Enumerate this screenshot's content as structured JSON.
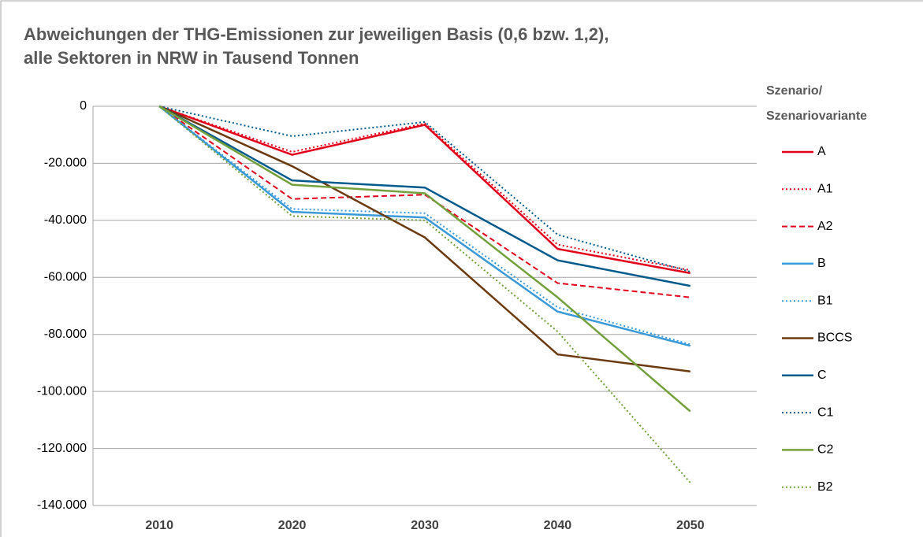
{
  "chart_data": {
    "type": "line",
    "title": [
      "Abweichungen der THG-Emissionen zur jeweiligen Basis (0,6 bzw. 1,2),",
      "alle Sektoren in NRW in Tausend Tonnen"
    ],
    "legend_title": [
      "Szenario/",
      "Szenariovariante"
    ],
    "categories": [
      "2010",
      "2020",
      "2030",
      "2040",
      "2050"
    ],
    "ylim": [
      -140000,
      0
    ],
    "yticks": [
      0,
      {
        "value": -20000,
        "label": "-20.000"
      },
      {
        "value": -40000,
        "label": "-40.000"
      },
      {
        "value": -60000,
        "label": "-60.000"
      },
      {
        "value": -80000,
        "label": "-80.000"
      },
      {
        "value": -100000,
        "label": "-100.000"
      },
      {
        "value": -120000,
        "label": "-120.000"
      },
      {
        "value": -140000,
        "label": "-140.000"
      }
    ],
    "grid": true,
    "legend": "right",
    "series": [
      {
        "name": "A",
        "color": "#e2001a",
        "dash": "solid",
        "values": [
          0,
          -17000,
          -6500,
          -50000,
          -58500
        ]
      },
      {
        "name": "A1",
        "color": "#e2001a",
        "dash": "dotted",
        "values": [
          0,
          -16000,
          -6000,
          -48500,
          -57500
        ]
      },
      {
        "name": "A2",
        "color": "#e2001a",
        "dash": "dashed",
        "values": [
          0,
          -32500,
          -31000,
          -62000,
          -67000
        ]
      },
      {
        "name": "B",
        "color": "#3a9ad9",
        "dash": "solid",
        "values": [
          0,
          -37000,
          -39000,
          -72000,
          -84000
        ]
      },
      {
        "name": "B1",
        "color": "#3a9ad9",
        "dash": "dotted",
        "values": [
          0,
          -36000,
          -37500,
          -70500,
          -83500
        ]
      },
      {
        "name": "BCCS",
        "color": "#6b3a10",
        "dash": "solid",
        "values": [
          0,
          -21000,
          -46000,
          -87000,
          -93000
        ]
      },
      {
        "name": "C",
        "color": "#005a8c",
        "dash": "solid",
        "values": [
          0,
          -26000,
          -28500,
          -54000,
          -63000
        ]
      },
      {
        "name": "C1",
        "color": "#005a8c",
        "dash": "dotted",
        "values": [
          0,
          -10500,
          -5500,
          -45000,
          -58000
        ]
      },
      {
        "name": "C2",
        "color": "#73a03c",
        "dash": "solid",
        "values": [
          0,
          -27500,
          -30500,
          -67000,
          -107000
        ]
      },
      {
        "name": "B2",
        "color": "#73a03c",
        "dash": "dotted",
        "values": [
          0,
          -38500,
          -40000,
          -79000,
          -132000
        ]
      }
    ]
  }
}
